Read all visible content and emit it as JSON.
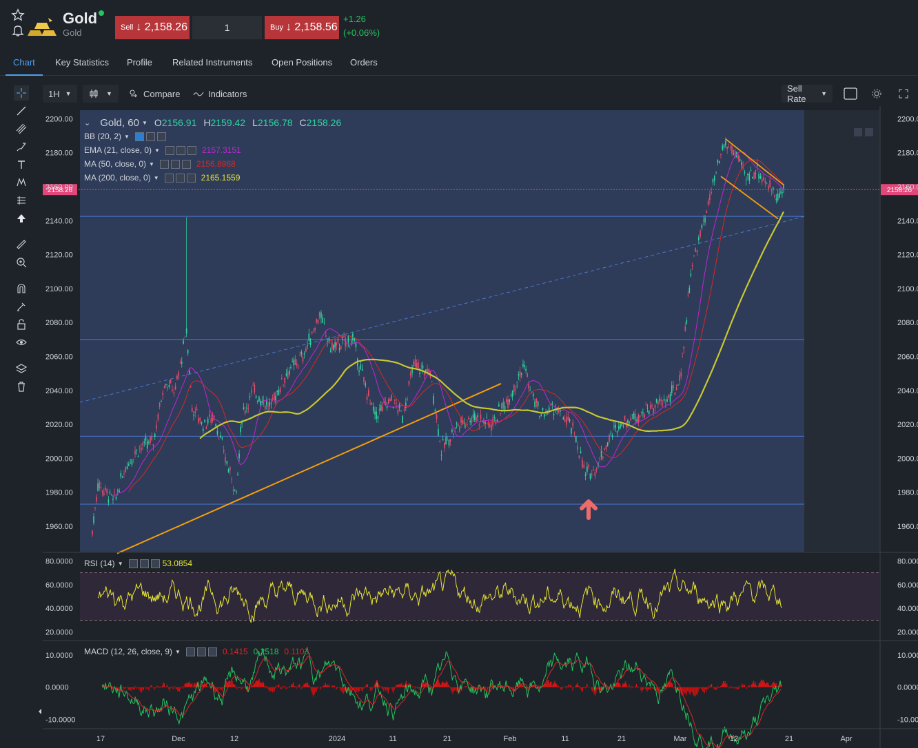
{
  "header": {
    "instrument_name": "Gold",
    "instrument_sub": "Gold",
    "sell_label": "Sell",
    "sell_price": "↓ 2,158.26",
    "quantity": "1",
    "buy_label": "Buy",
    "buy_price": "↓ 2,158.56",
    "change_abs": "+1.26",
    "change_pct": "(+0.06%)"
  },
  "tabs": [
    {
      "label": "Chart"
    },
    {
      "label": "Key Statistics"
    },
    {
      "label": "Profile"
    },
    {
      "label": "Related Instruments"
    },
    {
      "label": "Open Positions"
    },
    {
      "label": "Orders"
    }
  ],
  "toolbar": {
    "interval": "1H",
    "compare_label": "Compare",
    "indicators_label": "Indicators",
    "sell_rate_label": "Sell Rate"
  },
  "legend": {
    "symbol": "Gold, 60",
    "open_label": "O",
    "open": "2156.91",
    "high_label": "H",
    "high": "2159.42",
    "low_label": "L",
    "low": "2156.78",
    "close_label": "C",
    "close": "2158.26",
    "bb": "BB (20, 2)",
    "ema": "EMA (21, close, 0)",
    "ema_value": "2157.3151",
    "ma50": "MA (50, close, 0)",
    "ma50_value": "2156.8968",
    "ma200": "MA (200, close, 0)",
    "ma200_value": "2165.1559",
    "rsi": "RSI (14)",
    "rsi_value": "53.0854",
    "macd": "MACD (12, 26, close, 9)",
    "macd_v1": "0.1415",
    "macd_v2": "0.2518",
    "macd_v3": "0.1103"
  },
  "price_axis": {
    "ticks": [
      "2200.00",
      "2180.00",
      "2160.00",
      "2140.00",
      "2120.00",
      "2100.00",
      "2080.00",
      "2060.00",
      "2040.00",
      "2020.00",
      "2000.00",
      "1980.00",
      "1960.00"
    ],
    "current_price": "2158.26"
  },
  "rsi_axis": {
    "ticks": [
      "80.0000",
      "60.0000",
      "40.0000",
      "20.0000"
    ]
  },
  "macd_axis": {
    "ticks": [
      "10.0000",
      "0.0000",
      "-10.0000"
    ]
  },
  "time_axis": {
    "ticks": [
      "17",
      "Dec",
      "12",
      "2024",
      "11",
      "21",
      "Feb",
      "11",
      "21",
      "Mar",
      "12",
      "21",
      "Apr"
    ]
  },
  "colors": {
    "sell": "#b8363a",
    "buy": "#b8363a",
    "positive": "#22c55e",
    "accent": "#4ea1f3",
    "ema": "#c026d3",
    "ma50": "#dc2626",
    "ma200": "#c8c832",
    "current_price": "#e2477a",
    "trendline": "#f59e0b"
  },
  "chart_data": {
    "type": "candlestick",
    "title": "Gold, 60",
    "ylim": [
      1945,
      2205
    ],
    "x_label_dates": [
      "17",
      "Dec",
      "12",
      "2024",
      "11",
      "21",
      "Feb",
      "11",
      "21",
      "Mar",
      "12",
      "21",
      "Apr"
    ],
    "series": [
      {
        "name": "Gold, 60",
        "close_path": [
          {
            "x": "Nov 16",
            "y": 1957
          },
          {
            "x": "Nov 17",
            "y": 1985
          },
          {
            "x": "Nov 20",
            "y": 1975
          },
          {
            "x": "Nov 22",
            "y": 1995
          },
          {
            "x": "Nov 24",
            "y": 2005
          },
          {
            "x": "Nov 27",
            "y": 2010
          },
          {
            "x": "Nov 29",
            "y": 2045
          },
          {
            "x": "Dec 1",
            "y": 2040
          },
          {
            "x": "Dec 3",
            "y": 2075
          },
          {
            "x": "Dec 4",
            "y": 2030
          },
          {
            "x": "Dec 6",
            "y": 2020
          },
          {
            "x": "Dec 8",
            "y": 2025
          },
          {
            "x": "Dec 10",
            "y": 2000
          },
          {
            "x": "Dec 12",
            "y": 1980
          },
          {
            "x": "Dec 13",
            "y": 2025
          },
          {
            "x": "Dec 15",
            "y": 2040
          },
          {
            "x": "Dec 18",
            "y": 2030
          },
          {
            "x": "Dec 21",
            "y": 2050
          },
          {
            "x": "Dec 24",
            "y": 2060
          },
          {
            "x": "Dec 27",
            "y": 2085
          },
          {
            "x": "Dec 29",
            "y": 2065
          },
          {
            "x": "Jan 2",
            "y": 2070
          },
          {
            "x": "Jan 4",
            "y": 2045
          },
          {
            "x": "Jan 6",
            "y": 2025
          },
          {
            "x": "Jan 9",
            "y": 2035
          },
          {
            "x": "Jan 11",
            "y": 2025
          },
          {
            "x": "Jan 13",
            "y": 2055
          },
          {
            "x": "Jan 16",
            "y": 2050
          },
          {
            "x": "Jan 18",
            "y": 2005
          },
          {
            "x": "Jan 21",
            "y": 2020
          },
          {
            "x": "Jan 24",
            "y": 2025
          },
          {
            "x": "Jan 27",
            "y": 2020
          },
          {
            "x": "Jan 30",
            "y": 2035
          },
          {
            "x": "Feb 2",
            "y": 2055
          },
          {
            "x": "Feb 3",
            "y": 2040
          },
          {
            "x": "Feb 5",
            "y": 2025
          },
          {
            "x": "Feb 7",
            "y": 2030
          },
          {
            "x": "Feb 9",
            "y": 2025
          },
          {
            "x": "Feb 11",
            "y": 2015
          },
          {
            "x": "Feb 13",
            "y": 1990
          },
          {
            "x": "Feb 15",
            "y": 1995
          },
          {
            "x": "Feb 17",
            "y": 2010
          },
          {
            "x": "Feb 19",
            "y": 2020
          },
          {
            "x": "Feb 22",
            "y": 2025
          },
          {
            "x": "Feb 25",
            "y": 2030
          },
          {
            "x": "Feb 28",
            "y": 2035
          },
          {
            "x": "Mar 1",
            "y": 2045
          },
          {
            "x": "Mar 2",
            "y": 2075
          },
          {
            "x": "Mar 3",
            "y": 2110
          },
          {
            "x": "Mar 5",
            "y": 2135
          },
          {
            "x": "Mar 7",
            "y": 2160
          },
          {
            "x": "Mar 9",
            "y": 2185
          },
          {
            "x": "Mar 11",
            "y": 2180
          },
          {
            "x": "Mar 13",
            "y": 2165
          },
          {
            "x": "Mar 15",
            "y": 2170
          },
          {
            "x": "Mar 17",
            "y": 2160
          },
          {
            "x": "Mar 19",
            "y": 2155
          },
          {
            "x": "Mar 20",
            "y": 2158.26
          }
        ]
      }
    ],
    "annotations": [
      "2158.26"
    ]
  }
}
